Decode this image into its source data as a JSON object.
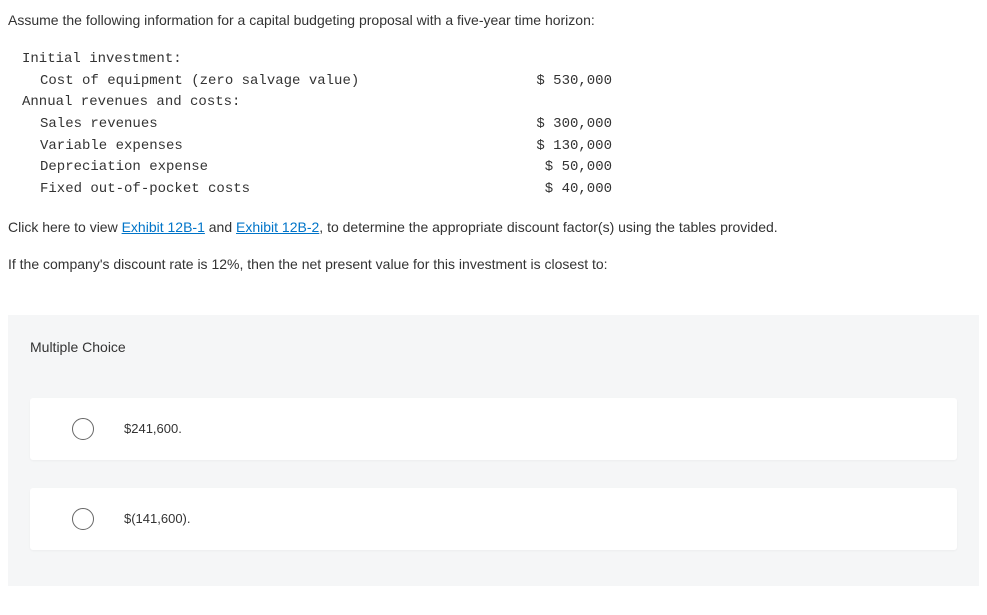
{
  "intro": "Assume the following information for a capital budgeting proposal with a five-year time horizon:",
  "table": {
    "rows": [
      {
        "label": "Initial investment:",
        "value": "",
        "indent": false
      },
      {
        "label": "Cost of equipment (zero salvage value)",
        "value": "$ 530,000",
        "indent": true
      },
      {
        "label": "Annual revenues and costs:",
        "value": "",
        "indent": false
      },
      {
        "label": "Sales revenues",
        "value": "$ 300,000",
        "indent": true
      },
      {
        "label": "Variable expenses",
        "value": "$ 130,000",
        "indent": true
      },
      {
        "label": "Depreciation expense",
        "value": "$ 50,000",
        "indent": true
      },
      {
        "label": "Fixed out-of-pocket costs",
        "value": "$ 40,000",
        "indent": true
      }
    ]
  },
  "links": {
    "prefix": "Click here to view ",
    "link1": "Exhibit 12B-1",
    "mid": " and ",
    "link2": "Exhibit 12B-2",
    "suffix": ", to determine the appropriate discount factor(s) using the tables provided."
  },
  "question": "If the company's discount rate is 12%, then the net present value for this investment is closest to:",
  "mc": {
    "title": "Multiple Choice",
    "choices": [
      "$241,600.",
      "$(141,600)."
    ]
  }
}
